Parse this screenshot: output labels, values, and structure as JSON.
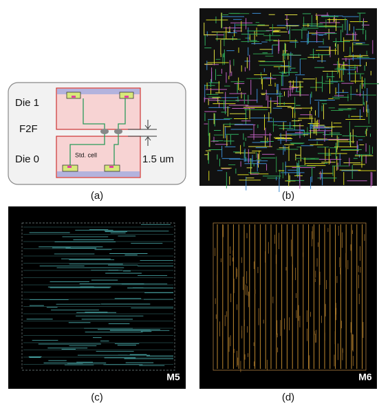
{
  "panels": [
    {
      "label": "(a)",
      "die_top": "Die 1",
      "bond": "F2F",
      "die_bottom": "Die 0",
      "cell": "Std. cell",
      "gap": "1.5 um"
    },
    {
      "label": "(b)"
    },
    {
      "label": "(c)",
      "layer": "M5"
    },
    {
      "label": "(d)",
      "layer": "M6"
    }
  ]
}
